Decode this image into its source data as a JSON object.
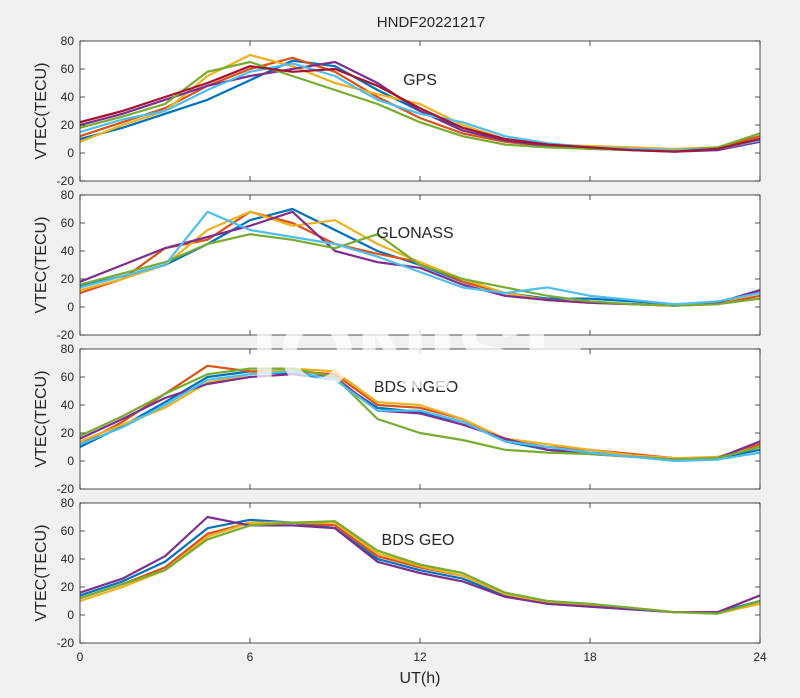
{
  "figure": {
    "title": "HNDF20221217",
    "xlabel": "UT(h)",
    "watermark": "IONISE"
  },
  "palette": [
    "#0072BD",
    "#D95319",
    "#EDB120",
    "#7E2F8E",
    "#77AC30",
    "#4DBEEE",
    "#A2142F"
  ],
  "chart_data": [
    {
      "type": "line",
      "label": "GPS",
      "ylabel": "VTEC(TECU)",
      "xlim": [
        0,
        24
      ],
      "ylim": [
        -20,
        80
      ],
      "xticks": [
        0,
        6,
        12,
        18,
        24
      ],
      "yticks": [
        -20,
        0,
        20,
        40,
        60,
        80
      ],
      "series": [
        {
          "x": [
            0,
            1.5,
            3,
            4.5,
            6,
            7.5,
            9,
            10.5,
            12,
            13.5,
            15,
            16.5,
            18,
            19.5,
            21,
            22.5,
            24
          ],
          "y": [
            10,
            18,
            28,
            38,
            52,
            66,
            62,
            45,
            30,
            18,
            10,
            6,
            4,
            3,
            2,
            3,
            10
          ]
        },
        {
          "x": [
            0,
            1.5,
            3,
            4.5,
            6,
            7.5,
            9,
            10.5,
            12,
            13.5,
            15,
            16.5,
            18,
            19.5,
            21,
            22.5,
            24
          ],
          "y": [
            12,
            22,
            32,
            48,
            60,
            68,
            58,
            40,
            25,
            14,
            8,
            5,
            4,
            3,
            2,
            4,
            12
          ]
        },
        {
          "x": [
            0,
            1.5,
            3,
            4.5,
            6,
            7.5,
            9,
            10.5,
            12,
            13.5,
            15,
            16.5,
            18,
            19.5,
            21,
            22.5,
            24
          ],
          "y": [
            8,
            20,
            30,
            55,
            70,
            62,
            50,
            42,
            35,
            20,
            10,
            6,
            5,
            4,
            3,
            4,
            8
          ]
        },
        {
          "x": [
            0,
            1.5,
            3,
            4.5,
            6,
            7.5,
            9,
            10.5,
            12,
            13.5,
            15,
            16.5,
            18,
            19.5,
            21,
            22.5,
            24
          ],
          "y": [
            20,
            28,
            38,
            48,
            55,
            60,
            65,
            50,
            30,
            16,
            9,
            5,
            3,
            2,
            1,
            2,
            8
          ]
        },
        {
          "x": [
            0,
            1.5,
            3,
            4.5,
            6,
            7.5,
            9,
            10.5,
            12,
            13.5,
            15,
            16.5,
            18,
            19.5,
            21,
            22.5,
            24
          ],
          "y": [
            18,
            26,
            35,
            58,
            65,
            55,
            45,
            35,
            22,
            12,
            6,
            4,
            3,
            2,
            2,
            4,
            14
          ]
        },
        {
          "x": [
            0,
            1.5,
            3,
            4.5,
            6,
            7.5,
            9,
            10.5,
            12,
            13.5,
            15,
            16.5,
            18,
            19.5,
            21,
            22.5,
            24
          ],
          "y": [
            15,
            24,
            30,
            45,
            58,
            64,
            55,
            38,
            28,
            22,
            12,
            7,
            4,
            3,
            2,
            3,
            9
          ]
        },
        {
          "x": [
            0,
            1.5,
            3,
            4.5,
            6,
            7.5,
            9,
            10.5,
            12,
            13.5,
            15,
            16.5,
            18,
            19.5,
            21,
            22.5,
            24
          ],
          "y": [
            22,
            30,
            40,
            50,
            62,
            58,
            60,
            48,
            32,
            18,
            10,
            6,
            4,
            2,
            1,
            3,
            10
          ]
        }
      ]
    },
    {
      "type": "line",
      "label": "GLONASS",
      "ylabel": "VTEC(TECU)",
      "xlim": [
        0,
        24
      ],
      "ylim": [
        -20,
        80
      ],
      "xticks": [
        0,
        6,
        12,
        18,
        24
      ],
      "yticks": [
        -20,
        0,
        20,
        40,
        60,
        80
      ],
      "series": [
        {
          "x": [
            0,
            1.5,
            3,
            4.5,
            6,
            7.5,
            9,
            10.5,
            12,
            13.5,
            15,
            16.5,
            18,
            19.5,
            21,
            22.5,
            24
          ],
          "y": [
            15,
            22,
            30,
            45,
            62,
            70,
            55,
            40,
            30,
            18,
            10,
            6,
            6,
            4,
            2,
            3,
            12
          ]
        },
        {
          "x": [
            0,
            1.5,
            3,
            4.5,
            6,
            7.5,
            9,
            10.5,
            12,
            13.5,
            15,
            16.5,
            18,
            19.5,
            21,
            22.5,
            24
          ],
          "y": [
            10,
            20,
            42,
            48,
            68,
            60,
            45,
            38,
            32,
            18,
            10,
            5,
            3,
            2,
            1,
            2,
            8
          ]
        },
        {
          "x": [
            0,
            1.5,
            3,
            4.5,
            6,
            7.5,
            9,
            10.5,
            12,
            13.5,
            15,
            16.5,
            18,
            19.5,
            21,
            22.5,
            24
          ],
          "y": [
            12,
            20,
            30,
            55,
            68,
            58,
            62,
            45,
            32,
            20,
            10,
            5,
            3,
            2,
            1,
            3,
            10
          ]
        },
        {
          "x": [
            0,
            1.5,
            3,
            4.5,
            6,
            7.5,
            9,
            10.5,
            12,
            13.5,
            15,
            16.5,
            18,
            19.5,
            21,
            22.5,
            24
          ],
          "y": [
            18,
            30,
            42,
            50,
            58,
            68,
            40,
            32,
            28,
            16,
            8,
            5,
            3,
            2,
            1,
            3,
            12
          ]
        },
        {
          "x": [
            0,
            1.5,
            3,
            4.5,
            6,
            7.5,
            9,
            10.5,
            12,
            13.5,
            15,
            16.5,
            18,
            19.5,
            21,
            22.5,
            24
          ],
          "y": [
            16,
            24,
            32,
            45,
            52,
            48,
            42,
            52,
            30,
            20,
            14,
            8,
            4,
            2,
            1,
            2,
            6
          ]
        },
        {
          "x": [
            0,
            1.5,
            3,
            4.5,
            6,
            7.5,
            9,
            10.5,
            12,
            13.5,
            15,
            16.5,
            18,
            19.5,
            21,
            22.5,
            24
          ],
          "y": [
            14,
            22,
            30,
            68,
            55,
            50,
            45,
            36,
            25,
            14,
            10,
            14,
            8,
            5,
            2,
            4,
            10
          ]
        }
      ]
    },
    {
      "type": "line",
      "label": "BDS NGEO",
      "ylabel": "VTEC(TECU)",
      "xlim": [
        0,
        24
      ],
      "ylim": [
        -20,
        80
      ],
      "xticks": [
        0,
        6,
        12,
        18,
        24
      ],
      "yticks": [
        -20,
        0,
        20,
        40,
        60,
        80
      ],
      "series": [
        {
          "x": [
            0,
            1.5,
            3,
            4.5,
            6,
            7.5,
            9,
            10.5,
            12,
            13.5,
            15,
            16.5,
            18,
            19.5,
            21,
            22.5,
            24
          ],
          "y": [
            10,
            25,
            42,
            60,
            64,
            62,
            58,
            38,
            35,
            28,
            14,
            8,
            6,
            4,
            2,
            2,
            8
          ]
        },
        {
          "x": [
            0,
            1.5,
            3,
            4.5,
            6,
            7.5,
            9,
            10.5,
            12,
            13.5,
            15,
            16.5,
            18,
            19.5,
            21,
            22.5,
            24
          ],
          "y": [
            12,
            28,
            48,
            68,
            64,
            64,
            62,
            40,
            38,
            30,
            15,
            10,
            8,
            5,
            2,
            2,
            12
          ]
        },
        {
          "x": [
            0,
            1.5,
            3,
            4.5,
            6,
            7.5,
            9,
            10.5,
            12,
            13.5,
            15,
            16.5,
            18,
            19.5,
            21,
            22.5,
            24
          ],
          "y": [
            14,
            26,
            38,
            56,
            62,
            66,
            64,
            42,
            40,
            30,
            16,
            12,
            8,
            4,
            2,
            3,
            10
          ]
        },
        {
          "x": [
            0,
            1.5,
            3,
            4.5,
            6,
            7.5,
            9,
            10.5,
            12,
            13.5,
            15,
            16.5,
            18,
            19.5,
            21,
            22.5,
            24
          ],
          "y": [
            16,
            30,
            45,
            55,
            60,
            62,
            60,
            36,
            34,
            26,
            16,
            8,
            5,
            3,
            1,
            2,
            14
          ]
        },
        {
          "x": [
            0,
            1.5,
            3,
            4.5,
            6,
            7.5,
            9,
            10.5,
            12,
            13.5,
            15,
            16.5,
            18,
            19.5,
            21,
            22.5,
            24
          ],
          "y": [
            18,
            32,
            48,
            62,
            66,
            66,
            60,
            30,
            20,
            15,
            8,
            6,
            5,
            3,
            1,
            2,
            10
          ]
        },
        {
          "x": [
            0,
            1.5,
            3,
            4.5,
            6,
            7.5,
            9,
            10.5,
            12,
            13.5,
            15,
            16.5,
            18,
            19.5,
            21,
            22.5,
            24
          ],
          "y": [
            12,
            24,
            40,
            58,
            62,
            64,
            58,
            36,
            36,
            28,
            14,
            10,
            6,
            3,
            0,
            1,
            6
          ]
        }
      ]
    },
    {
      "type": "line",
      "label": "BDS GEO",
      "ylabel": "VTEC(TECU)",
      "xlim": [
        0,
        24
      ],
      "ylim": [
        -20,
        80
      ],
      "xticks": [
        0,
        6,
        12,
        18,
        24
      ],
      "yticks": [
        -20,
        0,
        20,
        40,
        60,
        80
      ],
      "series": [
        {
          "x": [
            0,
            1.5,
            3,
            4.5,
            6,
            7.5,
            9,
            10.5,
            12,
            13.5,
            15,
            16.5,
            18,
            19.5,
            21,
            22.5,
            24
          ],
          "y": [
            14,
            24,
            38,
            62,
            68,
            66,
            62,
            40,
            32,
            26,
            14,
            8,
            6,
            4,
            2,
            2,
            10
          ]
        },
        {
          "x": [
            0,
            1.5,
            3,
            4.5,
            6,
            7.5,
            9,
            10.5,
            12,
            13.5,
            15,
            16.5,
            18,
            19.5,
            21,
            22.5,
            24
          ],
          "y": [
            12,
            22,
            34,
            58,
            66,
            66,
            64,
            42,
            34,
            28,
            15,
            9,
            7,
            5,
            2,
            2,
            8
          ]
        },
        {
          "x": [
            0,
            1.5,
            3,
            4.5,
            6,
            7.5,
            9,
            10.5,
            12,
            13.5,
            15,
            16.5,
            18,
            19.5,
            21,
            22.5,
            24
          ],
          "y": [
            10,
            20,
            32,
            56,
            66,
            66,
            66,
            44,
            35,
            28,
            15,
            9,
            7,
            5,
            2,
            1,
            8
          ]
        },
        {
          "x": [
            0,
            1.5,
            3,
            4.5,
            6,
            7.5,
            9,
            10.5,
            12,
            13.5,
            15,
            16.5,
            18,
            19.5,
            21,
            22.5,
            24
          ],
          "y": [
            16,
            26,
            42,
            70,
            64,
            64,
            62,
            38,
            30,
            24,
            13,
            8,
            6,
            4,
            2,
            2,
            14
          ]
        },
        {
          "x": [
            0,
            1.5,
            3,
            4.5,
            6,
            7.5,
            9,
            10.5,
            12,
            13.5,
            15,
            16.5,
            18,
            19.5,
            21,
            22.5,
            24
          ],
          "y": [
            12,
            22,
            32,
            54,
            64,
            66,
            67,
            46,
            36,
            30,
            16,
            10,
            8,
            5,
            2,
            1,
            10
          ]
        }
      ]
    }
  ]
}
